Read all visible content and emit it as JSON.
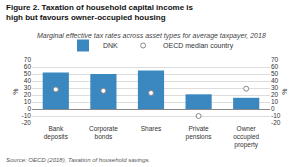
{
  "chart_data": {
    "type": "bar",
    "title": "Figure 2. Taxation of household capital income is high but favours owner-occupied housing",
    "subtitle": "Marginal effective tax rates across asset types for average taxpayer, 2018",
    "annotations": [
      "Source: OECD (2018), Taxation of household savings."
    ],
    "categories": [
      "Bank\ndeposits",
      "Corporate\nbonds",
      "Shares",
      "Private\npensions",
      "Owner\noccupied\nproperty"
    ],
    "series": [
      {
        "name": "DNK",
        "type": "bar",
        "color": "#3b87c0",
        "values": [
          52,
          50,
          55,
          21,
          16
        ]
      },
      {
        "name": "OECD median country",
        "type": "scatter",
        "marker": "circle",
        "color": "#888888",
        "values": [
          28,
          26,
          23,
          -10,
          29
        ]
      }
    ],
    "ylim": [
      -20,
      70
    ],
    "yticks": [
      -20,
      -10,
      0,
      10,
      20,
      30,
      40,
      50,
      60,
      70
    ],
    "ylabel": "%",
    "y2lim": [
      -20,
      70
    ],
    "y2ticks": [
      -20,
      -10,
      0,
      10,
      20,
      30,
      40,
      50,
      60,
      70
    ],
    "y2label": "%",
    "grid": true,
    "legend": "top"
  }
}
